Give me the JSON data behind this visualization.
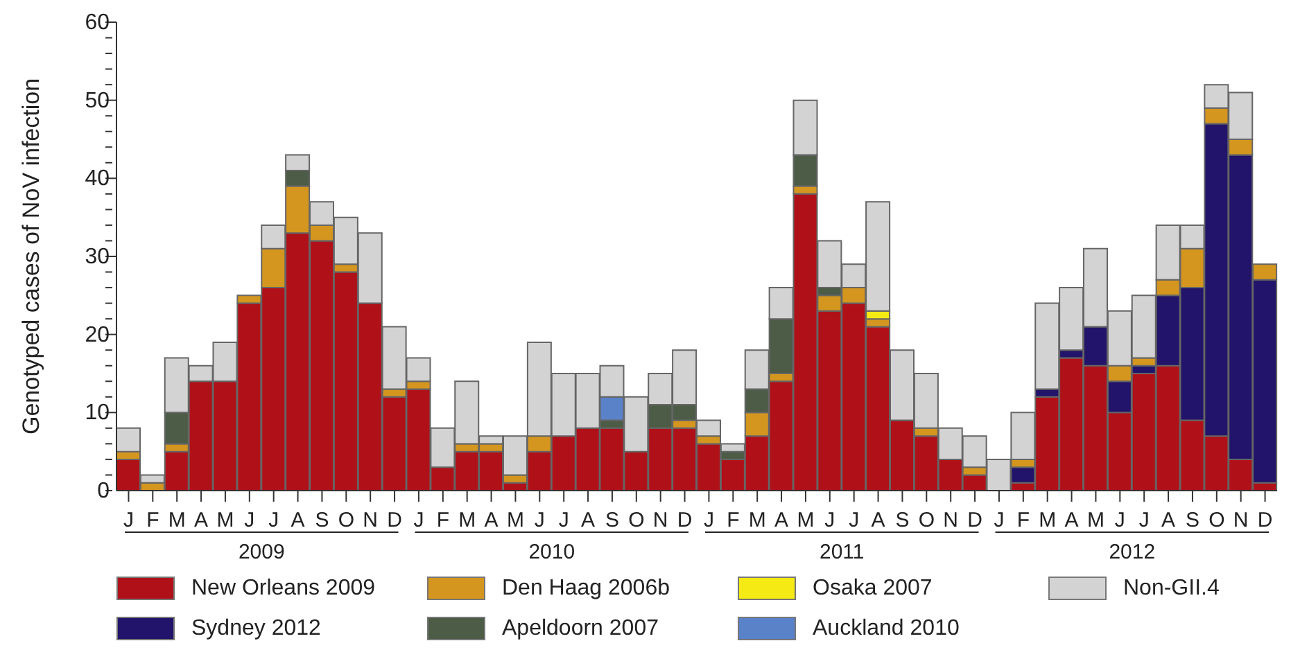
{
  "chart_data": {
    "type": "bar",
    "stacked": true,
    "ylabel": "Genotyped cases of NoV infection",
    "categories": [
      "J",
      "F",
      "M",
      "A",
      "M",
      "J",
      "J",
      "A",
      "S",
      "O",
      "N",
      "D",
      "J",
      "F",
      "M",
      "A",
      "M",
      "J",
      "J",
      "A",
      "S",
      "O",
      "N",
      "D",
      "J",
      "F",
      "M",
      "A",
      "M",
      "J",
      "J",
      "A",
      "S",
      "O",
      "N",
      "D",
      "J",
      "F",
      "M",
      "A",
      "M",
      "J",
      "J",
      "A",
      "S",
      "O",
      "N",
      "D"
    ],
    "annotations": [
      "2009",
      "2010",
      "2011",
      "2012"
    ],
    "ylim": [
      0,
      60
    ],
    "yticks": [
      0,
      {
        "value": 2,
        "label": null
      },
      {
        "value": 4,
        "label": null
      },
      {
        "value": 6,
        "label": null
      },
      {
        "value": 8,
        "label": null
      },
      10,
      {
        "value": 12,
        "label": null
      },
      {
        "value": 14,
        "label": null
      },
      {
        "value": 16,
        "label": null
      },
      {
        "value": 18,
        "label": null
      },
      20,
      {
        "value": 22,
        "label": null
      },
      {
        "value": 24,
        "label": null
      },
      {
        "value": 26,
        "label": null
      },
      {
        "value": 28,
        "label": null
      },
      30,
      {
        "value": 32,
        "label": null
      },
      {
        "value": 34,
        "label": null
      },
      {
        "value": 36,
        "label": null
      },
      {
        "value": 38,
        "label": null
      },
      40,
      {
        "value": 42,
        "label": null
      },
      {
        "value": 44,
        "label": null
      },
      {
        "value": 46,
        "label": null
      },
      {
        "value": 48,
        "label": null
      },
      50,
      {
        "value": 52,
        "label": null
      },
      {
        "value": 54,
        "label": null
      },
      {
        "value": 56,
        "label": null
      },
      {
        "value": 58,
        "label": null
      },
      60
    ],
    "legend": "bottom",
    "series": [
      {
        "name": "New Orleans 2009",
        "color": "#b01119",
        "values": [
          4,
          0,
          5,
          14,
          14,
          24,
          26,
          33,
          32,
          28,
          24,
          12,
          13,
          3,
          5,
          5,
          1,
          5,
          7,
          8,
          8,
          5,
          8,
          8,
          6,
          4,
          7,
          14,
          38,
          23,
          24,
          21,
          9,
          7,
          4,
          2,
          0,
          1,
          12,
          17,
          16,
          10,
          15,
          16,
          9,
          7,
          4,
          1
        ]
      },
      {
        "name": "Sydney 2012",
        "color": "#22146a",
        "values": [
          0,
          0,
          0,
          0,
          0,
          0,
          0,
          0,
          0,
          0,
          0,
          0,
          0,
          0,
          0,
          0,
          0,
          0,
          0,
          0,
          0,
          0,
          0,
          0,
          0,
          0,
          0,
          0,
          0,
          0,
          0,
          0,
          0,
          0,
          0,
          0,
          0,
          2,
          1,
          1,
          5,
          4,
          1,
          9,
          17,
          40,
          39,
          26
        ]
      },
      {
        "name": "Den Haag 2006b",
        "color": "#d4961f",
        "values": [
          1,
          1,
          1,
          0,
          0,
          1,
          5,
          6,
          2,
          1,
          0,
          1,
          1,
          0,
          1,
          1,
          1,
          2,
          0,
          0,
          0,
          0,
          0,
          1,
          1,
          0,
          3,
          1,
          1,
          2,
          2,
          1,
          0,
          1,
          0,
          1,
          0,
          1,
          0,
          0,
          0,
          2,
          1,
          2,
          5,
          2,
          2,
          2
        ]
      },
      {
        "name": "Apeldoorn 2007",
        "color": "#4c5c46",
        "values": [
          0,
          0,
          4,
          0,
          0,
          0,
          0,
          2,
          0,
          0,
          0,
          0,
          0,
          0,
          0,
          0,
          0,
          0,
          0,
          0,
          1,
          0,
          3,
          2,
          0,
          1,
          3,
          7,
          4,
          1,
          0,
          0,
          0,
          0,
          0,
          0,
          0,
          0,
          0,
          0,
          0,
          0,
          0,
          0,
          0,
          0,
          0,
          0
        ]
      },
      {
        "name": "Osaka 2007",
        "color": "#f5ea14",
        "values": [
          0,
          0,
          0,
          0,
          0,
          0,
          0,
          0,
          0,
          0,
          0,
          0,
          0,
          0,
          0,
          0,
          0,
          0,
          0,
          0,
          0,
          0,
          0,
          0,
          0,
          0,
          0,
          0,
          0,
          0,
          0,
          1,
          0,
          0,
          0,
          0,
          0,
          0,
          0,
          0,
          0,
          0,
          0,
          0,
          0,
          0,
          0,
          0
        ]
      },
      {
        "name": "Auckland 2010",
        "color": "#5a82c8",
        "values": [
          0,
          0,
          0,
          0,
          0,
          0,
          0,
          0,
          0,
          0,
          0,
          0,
          0,
          0,
          0,
          0,
          0,
          0,
          0,
          0,
          3,
          0,
          0,
          0,
          0,
          0,
          0,
          0,
          0,
          0,
          0,
          0,
          0,
          0,
          0,
          0,
          0,
          0,
          0,
          0,
          0,
          0,
          0,
          0,
          0,
          0,
          0,
          0
        ]
      },
      {
        "name": "Non-GII.4",
        "color": "#d3d3d3",
        "values": [
          3,
          1,
          7,
          2,
          5,
          0,
          3,
          2,
          3,
          6,
          9,
          8,
          3,
          5,
          8,
          1,
          5,
          12,
          8,
          7,
          4,
          7,
          4,
          7,
          2,
          1,
          5,
          4,
          7,
          6,
          3,
          14,
          9,
          7,
          4,
          4,
          4,
          6,
          11,
          8,
          10,
          7,
          8,
          7,
          3,
          3,
          6,
          0
        ]
      }
    ]
  }
}
